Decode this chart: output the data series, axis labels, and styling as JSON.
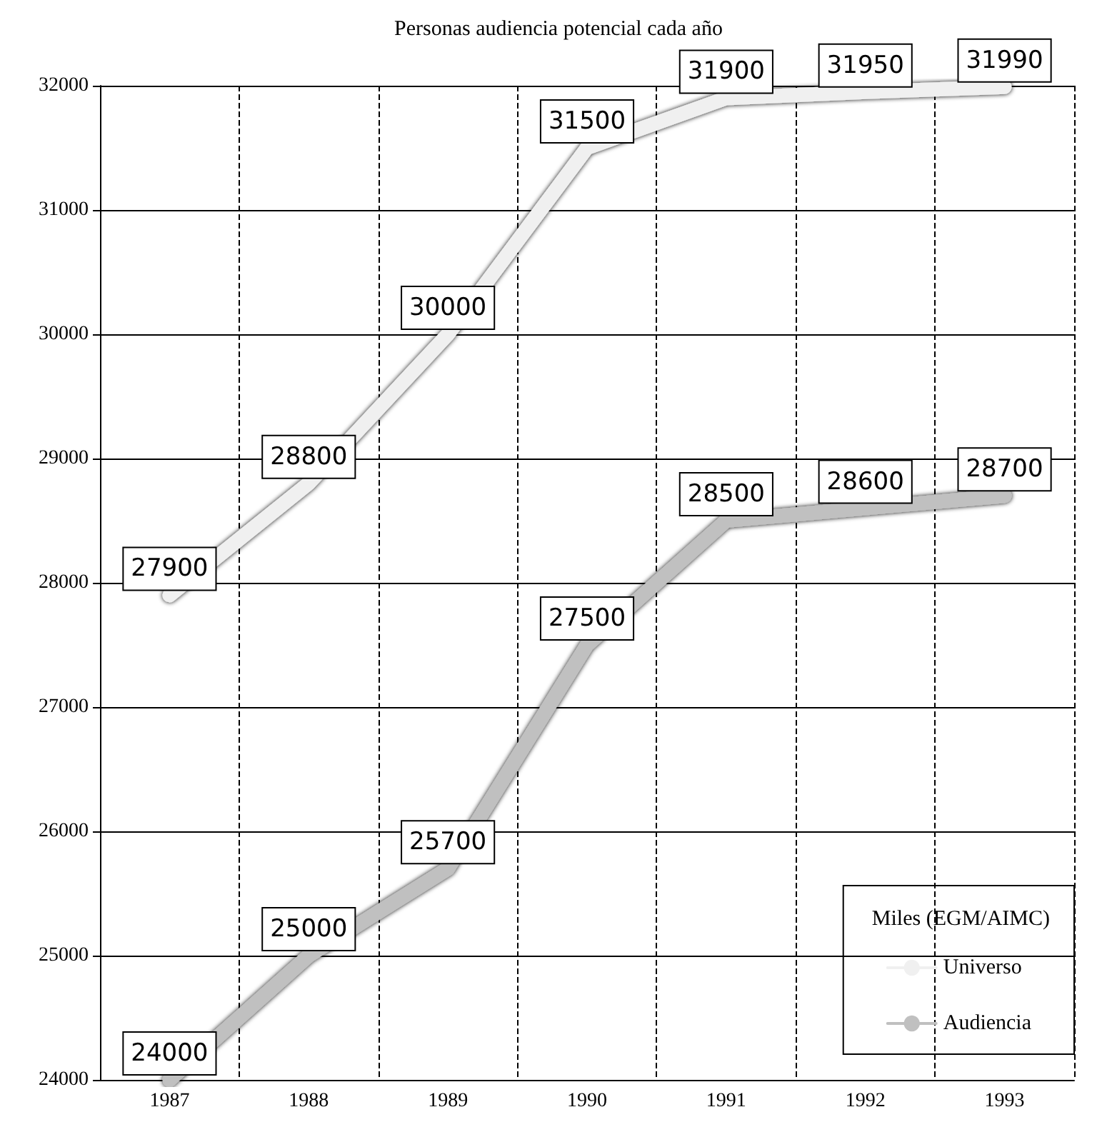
{
  "chart_data": {
    "type": "line",
    "title": "Personas audiencia potencial cada año",
    "categories": [
      "1987",
      "1988",
      "1989",
      "1990",
      "1991",
      "1992",
      "1993"
    ],
    "series": [
      {
        "name": "Universo",
        "color": "#f0f0f0",
        "values": [
          27900,
          28800,
          30000,
          31500,
          31900,
          31950,
          31990
        ]
      },
      {
        "name": "Audiencia",
        "color": "#c0c0c0",
        "values": [
          24000,
          25000,
          25700,
          27500,
          28500,
          28600,
          28700
        ]
      }
    ],
    "ylim": [
      24000,
      32000
    ],
    "yticks": [
      24000,
      25000,
      26000,
      27000,
      28000,
      29000,
      30000,
      31000,
      32000
    ],
    "grid": true,
    "legend": "bottom right",
    "legend_title": "Miles (EGM/AIMC)",
    "data_labels": true,
    "marker": "none"
  }
}
